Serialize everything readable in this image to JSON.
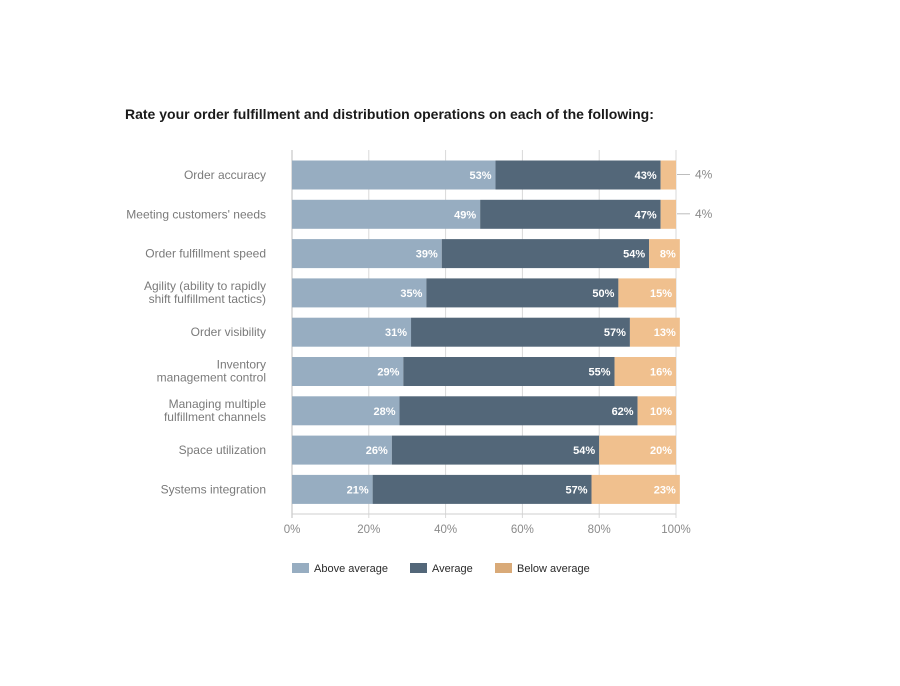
{
  "chart_data": {
    "type": "bar",
    "orientation": "horizontal",
    "stacked": true,
    "title": "Rate your order fulfillment and distribution operations on each of the following:",
    "categories": [
      [
        "Order accuracy"
      ],
      [
        "Meeting customers' needs"
      ],
      [
        "Order fulfillment speed"
      ],
      [
        "Agility (ability to rapidly",
        "shift fulfillment tactics)"
      ],
      [
        "Order visibility"
      ],
      [
        "Inventory",
        "management control"
      ],
      [
        "Managing multiple",
        "fulfillment channels"
      ],
      [
        "Space utilization"
      ],
      [
        "Systems integration"
      ]
    ],
    "series": [
      {
        "name": "Above average",
        "color": "#97adc1",
        "values": [
          53,
          49,
          39,
          35,
          31,
          29,
          28,
          26,
          21
        ]
      },
      {
        "name": "Average",
        "color": "#536779",
        "values": [
          43,
          47,
          54,
          50,
          57,
          55,
          62,
          54,
          57
        ]
      },
      {
        "name": "Below average",
        "color": "#f0c08e",
        "values": [
          4,
          4,
          8,
          15,
          13,
          16,
          10,
          20,
          23
        ]
      }
    ],
    "legend_swatch_colors": [
      "#97adc1",
      "#536779",
      "#d9aa78"
    ],
    "x_ticks": [
      "0%",
      "20%",
      "40%",
      "60%",
      "80%",
      "100%"
    ],
    "xlim": [
      0,
      100
    ],
    "grid": true,
    "legend_position": "bottom-center",
    "outside_labels": [
      {
        "category_index": 0,
        "text": "4%"
      },
      {
        "category_index": 1,
        "text": "4%"
      }
    ]
  }
}
